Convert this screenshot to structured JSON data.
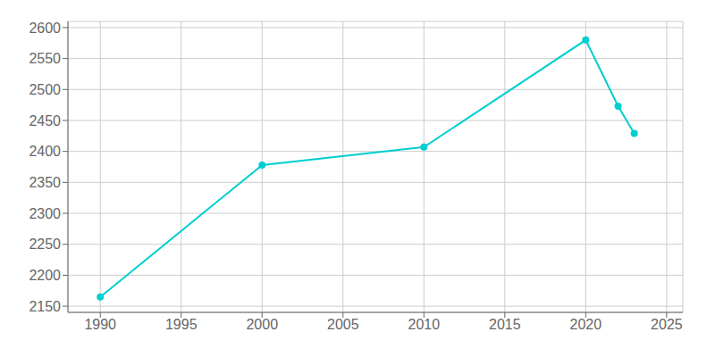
{
  "chart_data": {
    "type": "line",
    "x": [
      1990,
      2000,
      2010,
      2020,
      2022,
      2023
    ],
    "values": [
      2165,
      2378,
      2407,
      2580,
      2473,
      2429
    ],
    "color": "#00CED1",
    "marker": "circle",
    "xlim": [
      1988,
      2026
    ],
    "ylim": [
      2140,
      2610
    ],
    "xticks": [
      1990,
      1995,
      2000,
      2005,
      2010,
      2015,
      2020,
      2025
    ],
    "yticks": [
      2150,
      2200,
      2250,
      2300,
      2350,
      2400,
      2450,
      2500,
      2550,
      2600
    ],
    "grid": true
  }
}
